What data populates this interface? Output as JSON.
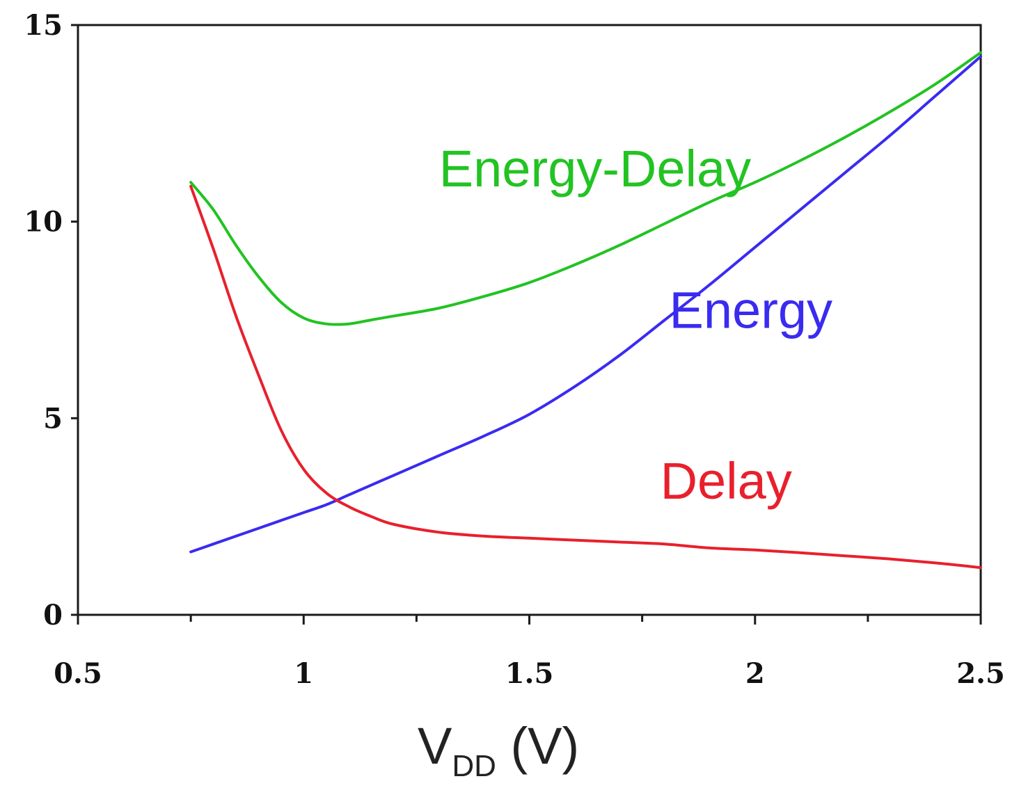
{
  "chart_data": {
    "type": "line",
    "title": "",
    "xlabel": {
      "main": "V",
      "subscript": "DD",
      "unit": " (V)"
    },
    "ylabel": "",
    "xlim": [
      0.5,
      2.5
    ],
    "ylim": [
      0,
      15
    ],
    "x_ticks": [
      "0.5",
      "1",
      "1.5",
      "2",
      "2.5"
    ],
    "y_ticks": [
      "0",
      "5",
      "10",
      "15"
    ],
    "x_minor_ticks": [
      0.75,
      1.25,
      1.75,
      2.25
    ],
    "grid": false,
    "legend": "inline labels",
    "series": [
      {
        "name": "Energy-Delay",
        "color": "#22c322",
        "x": [
          0.75,
          0.8,
          0.85,
          0.9,
          0.95,
          1.0,
          1.05,
          1.1,
          1.15,
          1.2,
          1.3,
          1.4,
          1.5,
          1.6,
          1.7,
          1.8,
          1.9,
          2.0,
          2.1,
          2.2,
          2.3,
          2.4,
          2.5
        ],
        "y": [
          11.0,
          10.3,
          9.4,
          8.6,
          7.95,
          7.55,
          7.4,
          7.4,
          7.5,
          7.6,
          7.8,
          8.1,
          8.45,
          8.9,
          9.4,
          9.95,
          10.5,
          11.0,
          11.55,
          12.15,
          12.8,
          13.5,
          14.3
        ]
      },
      {
        "name": "Energy",
        "color": "#3a2bf0",
        "x": [
          0.75,
          0.8,
          0.85,
          0.9,
          0.95,
          1.0,
          1.05,
          1.1,
          1.15,
          1.2,
          1.3,
          1.4,
          1.5,
          1.6,
          1.7,
          1.8,
          1.9,
          2.0,
          2.1,
          2.2,
          2.3,
          2.4,
          2.5
        ],
        "y": [
          1.6,
          1.8,
          2.0,
          2.2,
          2.4,
          2.6,
          2.8,
          3.05,
          3.3,
          3.55,
          4.05,
          4.55,
          5.1,
          5.8,
          6.6,
          7.5,
          8.4,
          9.35,
          10.3,
          11.25,
          12.2,
          13.2,
          14.2
        ]
      },
      {
        "name": "Delay",
        "color": "#e8202c",
        "x": [
          0.75,
          0.8,
          0.85,
          0.9,
          0.95,
          1.0,
          1.05,
          1.1,
          1.15,
          1.2,
          1.3,
          1.4,
          1.5,
          1.6,
          1.7,
          1.8,
          1.9,
          2.0,
          2.1,
          2.2,
          2.3,
          2.4,
          2.5
        ],
        "y": [
          10.9,
          9.3,
          7.6,
          6.1,
          4.7,
          3.7,
          3.1,
          2.75,
          2.5,
          2.3,
          2.1,
          2.0,
          1.95,
          1.9,
          1.85,
          1.8,
          1.7,
          1.65,
          1.58,
          1.5,
          1.42,
          1.32,
          1.2
        ]
      }
    ],
    "annotations": [
      {
        "text": "Energy-Delay",
        "series": "Energy-Delay",
        "x": 1.3,
        "y": 10.9
      },
      {
        "text": "Energy",
        "series": "Energy",
        "x": 1.81,
        "y": 7.3
      },
      {
        "text": "Delay",
        "series": "Delay",
        "x": 1.79,
        "y": 2.95
      }
    ]
  }
}
